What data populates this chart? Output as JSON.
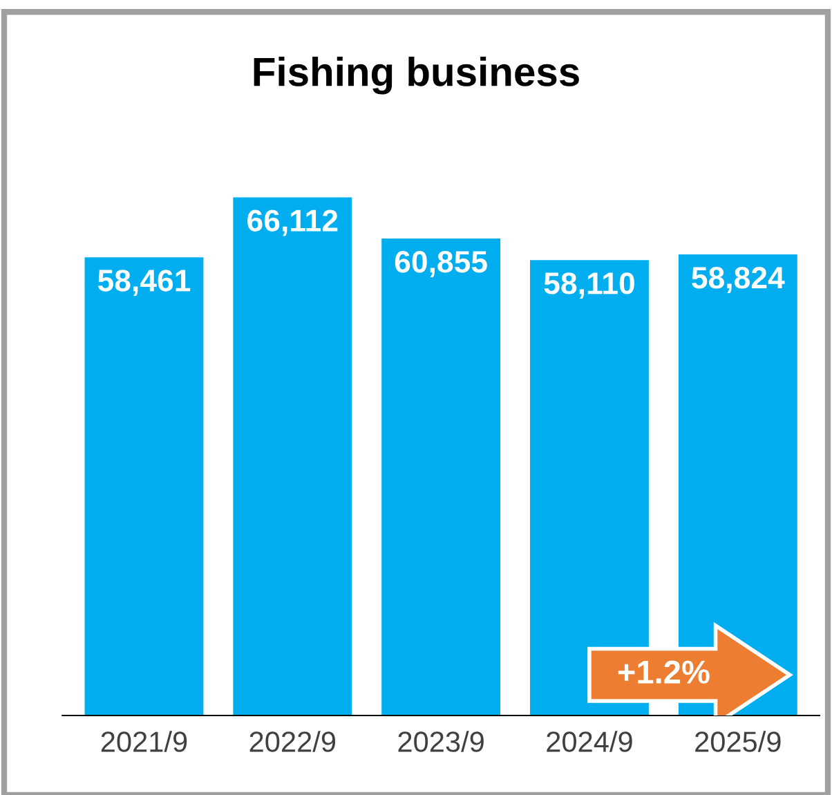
{
  "chart_data": {
    "type": "bar",
    "title": "Fishing business",
    "categories": [
      "2021/9",
      "2022/9",
      "2023/9",
      "2024/9",
      "2025/9"
    ],
    "values": [
      58461,
      66112,
      60855,
      58110,
      58824
    ],
    "color": "#00aeef",
    "value_labels": [
      "58,461",
      "66,112",
      "60,855",
      "58,110",
      "58,824"
    ],
    "tick_labels": "x",
    "grid": false,
    "annotations": [
      "+1.2%"
    ]
  }
}
